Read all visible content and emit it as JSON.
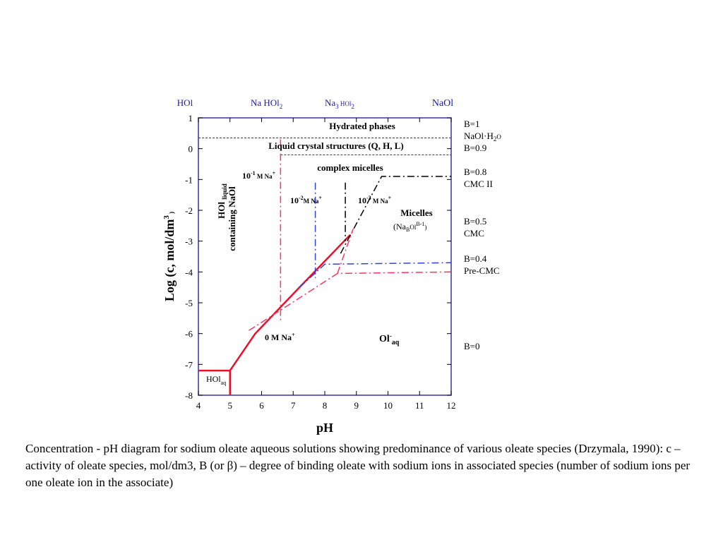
{
  "chart_data": {
    "type": "line",
    "xlabel": "pH",
    "ylabel": "Log (c, mol/dm3)",
    "xlim": [
      4,
      12
    ],
    "ylim": [
      -8,
      1
    ],
    "x_ticks": [
      "4",
      "5",
      "6",
      "7",
      "8",
      "9",
      "10",
      "11",
      "12"
    ],
    "y_ticks": [
      "1",
      "0",
      "-1",
      "-2",
      "-3",
      "-4",
      "-5",
      "-6",
      "-7",
      "-8"
    ],
    "top_labels": [
      "HOl",
      "Na HOl2",
      "Na3 HOl2",
      "NaOl"
    ],
    "right_labels": [
      {
        "lines": [
          "B=1",
          "NaOl·H2O",
          "B=0.9"
        ]
      },
      {
        "lines": [
          "B=0.8",
          "CMC II"
        ]
      },
      {
        "lines": [
          "B=0.5",
          "CMC"
        ]
      },
      {
        "lines": [
          "B=0.4",
          "Pre-CMC"
        ]
      },
      {
        "lines": [
          "B=0"
        ]
      }
    ],
    "region_labels": {
      "hydrated": "Hydrated phases",
      "liquid_crystal": "Liquid crystal structures (Q, H, L)",
      "complex_micelles": "complex micelles",
      "micelles": "Micelles",
      "micelles_formula": "(NaBOlB-1)",
      "hol_liquid": "HOl liquid",
      "containing": "containing NaOl",
      "hol_aq": "HOlaq",
      "ol_aq": "Ol-aq"
    },
    "concentration_labels": [
      "10-1 M Na+",
      "10-2 M Na+",
      "10-3 M Na+",
      "0 M Na+"
    ],
    "series": [
      {
        "color": "#e8102a",
        "style": "solid",
        "points": [
          [
            4,
            -7.2
          ],
          [
            5,
            -7.2
          ],
          [
            5,
            -8
          ],
          [
            5,
            -7.2
          ],
          [
            5.8,
            -6
          ],
          [
            7.2,
            -4.5
          ],
          [
            8.8,
            -2.8
          ]
        ]
      },
      {
        "color": "#ff3366",
        "style": "dashdot",
        "points": [
          [
            6.6,
            0.3
          ],
          [
            6.6,
            -5.6
          ]
        ]
      },
      {
        "color": "#3344dd",
        "style": "dashdot",
        "points": [
          [
            7.7,
            -1.1
          ],
          [
            7.7,
            -4.2
          ]
        ]
      },
      {
        "color": "#000000",
        "style": "dashdot",
        "points": [
          [
            8.65,
            -1.1
          ],
          [
            8.65,
            -3
          ]
        ]
      },
      {
        "color": "#000000",
        "style": "dashdot",
        "points": [
          [
            8.5,
            -3.4
          ],
          [
            9.8,
            -0.9
          ],
          [
            12,
            -0.9
          ]
        ]
      },
      {
        "color": "#3344dd",
        "style": "dashdot",
        "points": [
          [
            7.2,
            -4.5
          ],
          [
            8,
            -3.75
          ],
          [
            12,
            -3.7
          ]
        ]
      },
      {
        "color": "#ff3366",
        "style": "dashdot",
        "points": [
          [
            5.6,
            -5.9
          ],
          [
            8.4,
            -4.05
          ],
          [
            12,
            -4.0
          ]
        ]
      },
      {
        "color": "#ff3366",
        "style": "dashdot",
        "points": [
          [
            8.4,
            -4.05
          ],
          [
            8.9,
            -2.6
          ]
        ]
      }
    ],
    "hlines": [
      {
        "y": 0.35,
        "x_from": 4,
        "style": "dotted"
      },
      {
        "y": -0.2,
        "x_from": 6.6,
        "style": "dotted"
      }
    ]
  },
  "caption": "Concentration - pH diagram for sodium oleate aqueous solutions showing predominance of various oleate species (Drzymala, 1990): c – activity of oleate species, mol/dm3, B (or β) – degree of binding oleate with sodium ions in associated species (number of sodium ions per one oleate ion in the associate)"
}
